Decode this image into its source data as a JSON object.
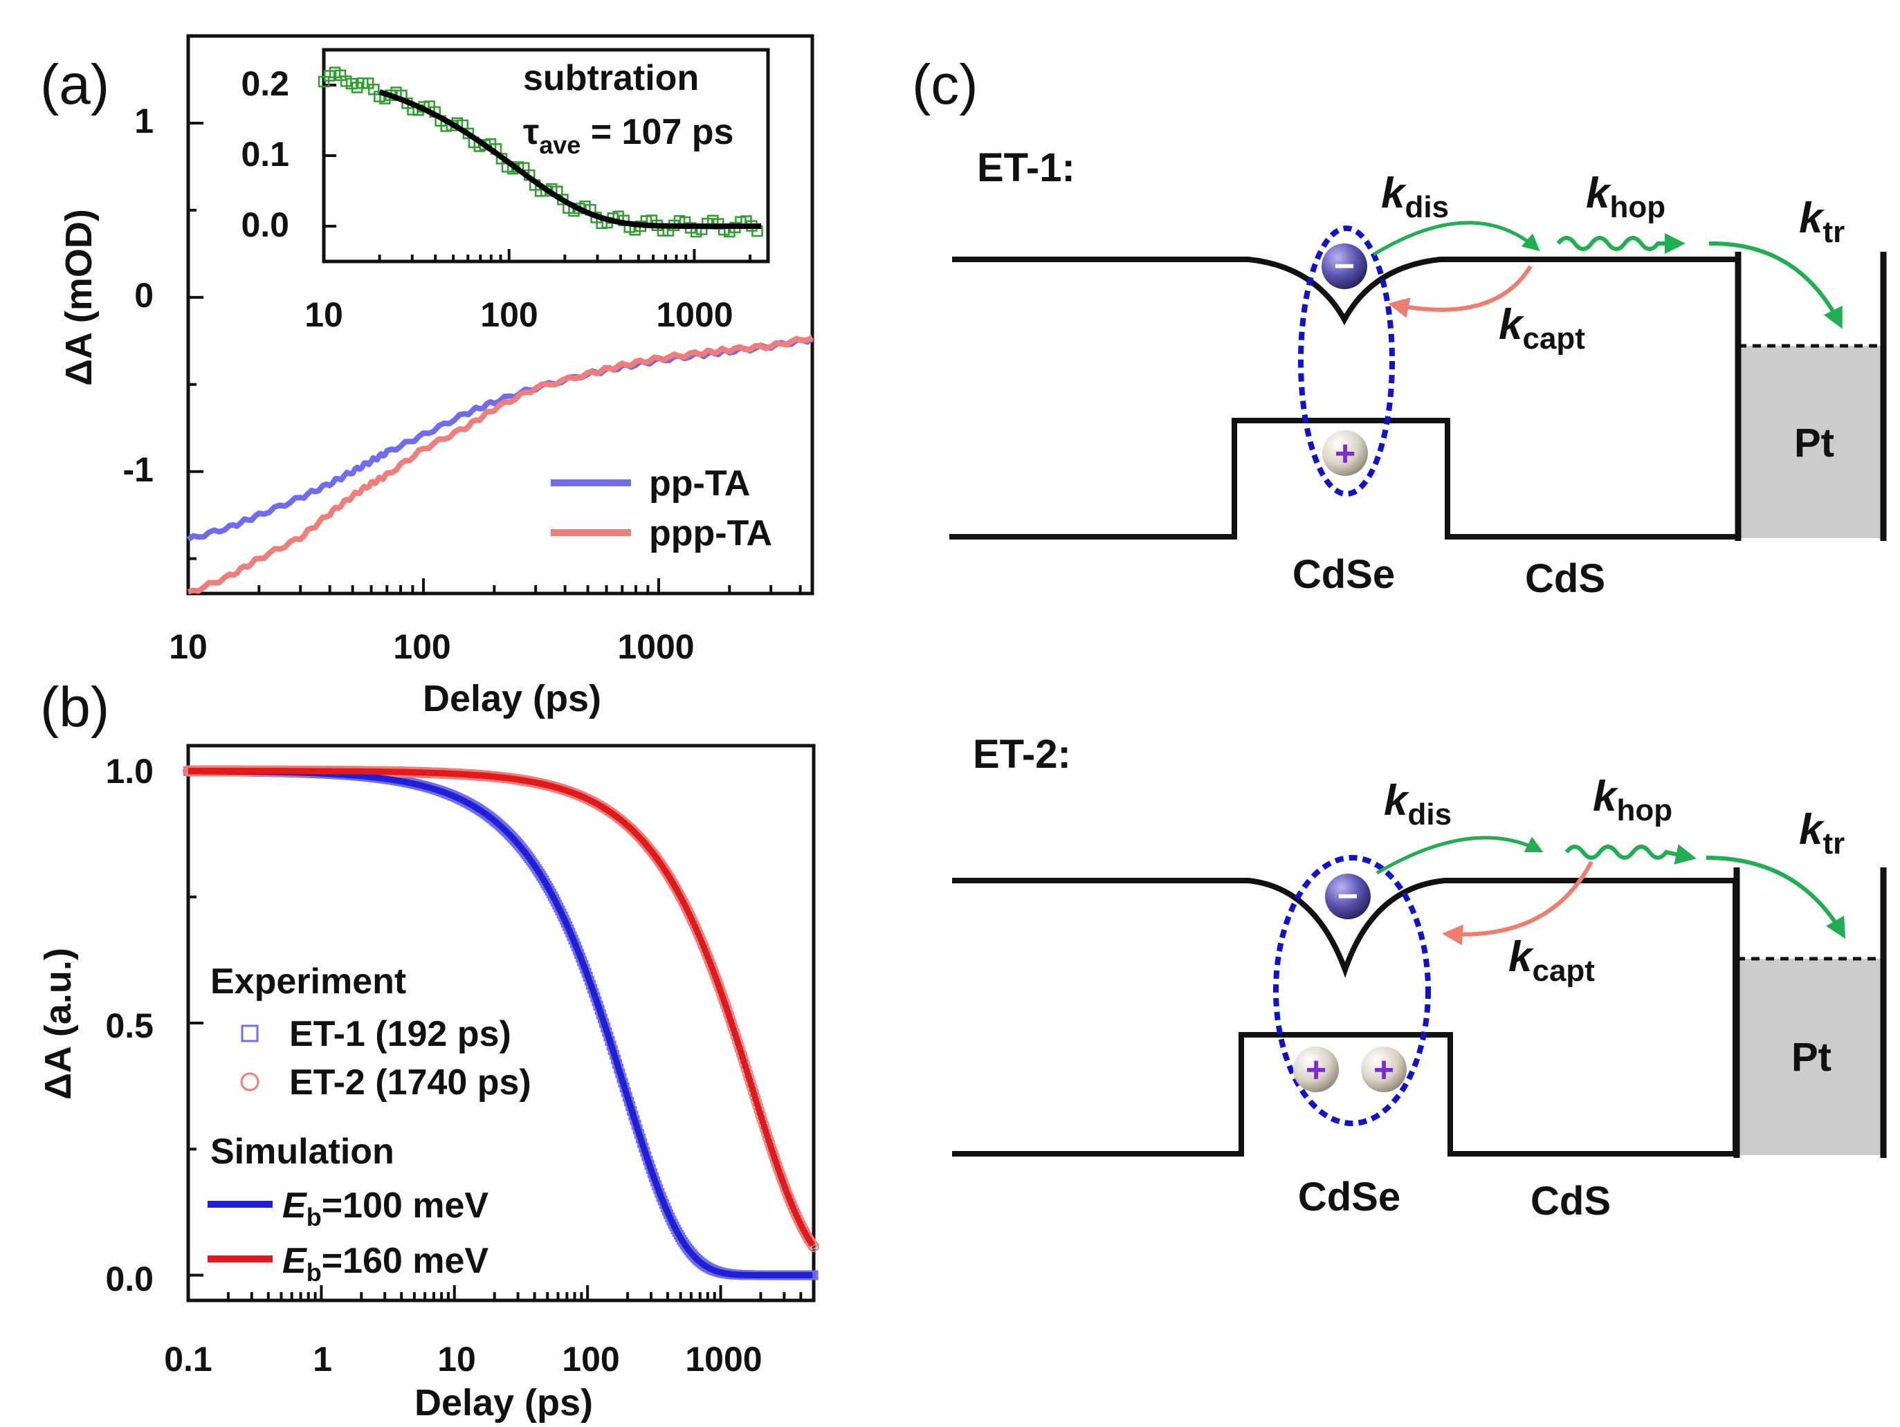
{
  "chart_data": [
    {
      "id": "a",
      "panel_label": "(a)",
      "type": "line",
      "xscale": "log",
      "xlim": [
        10,
        4500
      ],
      "ylim": [
        -1.7,
        1.5
      ],
      "xlabel": "Delay (ps)",
      "ylabel": "ΔA (mOD)",
      "xticks": [
        {
          "value": 10,
          "label": "10"
        },
        {
          "value": 100,
          "label": "100"
        },
        {
          "value": 1000,
          "label": "1000"
        }
      ],
      "yticks": [
        {
          "value": 1,
          "label": "1"
        },
        {
          "value": 0,
          "label": "0"
        },
        {
          "value": -1,
          "label": "-1"
        }
      ],
      "legend_position": "bottom-right",
      "series": [
        {
          "name": "pp-TA",
          "color": "#6f6cf0",
          "x": [
            10,
            15,
            20,
            30,
            40,
            50,
            60,
            70,
            100,
            150,
            200,
            300,
            500,
            700,
            1000,
            1500,
            2000,
            3000,
            4500
          ],
          "y": [
            -1.39,
            -1.32,
            -1.25,
            -1.15,
            -1.07,
            -1.0,
            -0.94,
            -0.89,
            -0.79,
            -0.67,
            -0.6,
            -0.52,
            -0.44,
            -0.4,
            -0.36,
            -0.33,
            -0.31,
            -0.28,
            -0.24
          ]
        },
        {
          "name": "ppp-TA",
          "color": "#f07d7a",
          "x": [
            10,
            15,
            20,
            30,
            40,
            50,
            60,
            70,
            100,
            150,
            200,
            300,
            500,
            700,
            1000,
            1500,
            2000,
            3000,
            4500
          ],
          "y": [
            -1.7,
            -1.6,
            -1.5,
            -1.38,
            -1.24,
            -1.14,
            -1.07,
            -1.02,
            -0.87,
            -0.75,
            -0.64,
            -0.52,
            -0.44,
            -0.39,
            -0.35,
            -0.32,
            -0.3,
            -0.28,
            -0.23
          ]
        }
      ],
      "inset": {
        "type": "scatter+line",
        "xscale": "log",
        "xlim": [
          10,
          2500
        ],
        "ylim": [
          -0.05,
          0.25
        ],
        "xticks": [
          {
            "value": 10,
            "label": "10"
          },
          {
            "value": 100,
            "label": "100"
          },
          {
            "value": 1000,
            "label": "1000"
          }
        ],
        "yticks": [
          {
            "value": 0.2,
            "label": "0.2"
          },
          {
            "value": 0.1,
            "label": "0.1"
          },
          {
            "value": 0.0,
            "label": "0.0"
          }
        ],
        "annotation_line1": "subtration",
        "annotation_tau": "τ",
        "annotation_tau_sub": "ave",
        "annotation_tau_value": " = 107 ps",
        "data_color": "#2e9e2e",
        "fit_color": "#000000",
        "tau_ps": 107,
        "amplitude": 0.205,
        "fit_start_ps": 20
      }
    },
    {
      "id": "b",
      "panel_label": "(b)",
      "type": "scatter+line",
      "xscale": "log",
      "xlim": [
        0.1,
        5000
      ],
      "ylim": [
        -0.05,
        1.05
      ],
      "xlabel": "Delay (ps)",
      "ylabel": "ΔA (a.u.)",
      "xticks": [
        {
          "value": 0.1,
          "label": "0.1"
        },
        {
          "value": 1,
          "label": "1"
        },
        {
          "value": 10,
          "label": "10"
        },
        {
          "value": 100,
          "label": "100"
        },
        {
          "value": 1000,
          "label": "1000"
        }
      ],
      "yticks": [
        {
          "value": 1.0,
          "label": "1.0"
        },
        {
          "value": 0.5,
          "label": "0.5"
        },
        {
          "value": 0.0,
          "label": "0.0"
        }
      ],
      "legend_position": "bottom-left",
      "legend_experiment_title": "Experiment",
      "legend_simulation_title": "Simulation",
      "series": [
        {
          "name": "ET-1 (192 ps)",
          "kind": "experiment",
          "marker": "square",
          "color": "#6f6cf0",
          "tau_ps": 192
        },
        {
          "name": "ET-2 (1740 ps)",
          "kind": "experiment",
          "marker": "circle",
          "color": "#f07d7a",
          "tau_ps": 1740
        },
        {
          "name": "E",
          "name_sub": "b",
          "name_rest": "=100 meV",
          "kind": "simulation",
          "color": "#1f1fd6",
          "tau_ps": 192
        },
        {
          "name": "E",
          "name_sub": "b",
          "name_rest": "=160 meV",
          "kind": "simulation",
          "color": "#e01a1a",
          "tau_ps": 1740
        }
      ]
    }
  ],
  "diagram": {
    "panel_label": "(c)",
    "et1": {
      "title": "ET-1:",
      "k_dis": "k",
      "k_dis_sub": "dis",
      "k_hop": "k",
      "k_hop_sub": "hop",
      "k_tr": "k",
      "k_tr_sub": "tr",
      "k_capt": "k",
      "k_capt_sub": "capt",
      "electron_symbol": "−",
      "hole_symbol": "+",
      "label_cdse": "CdSe",
      "label_cds": "CdS",
      "label_pt": "Pt"
    },
    "et2": {
      "title": "ET-2:",
      "k_dis": "k",
      "k_dis_sub": "dis",
      "k_hop": "k",
      "k_hop_sub": "hop",
      "k_tr": "k",
      "k_tr_sub": "tr",
      "k_capt": "k",
      "k_capt_sub": "capt",
      "electron_symbol": "−",
      "hole_symbol": "+",
      "label_cdse": "CdSe",
      "label_cds": "CdS",
      "label_pt": "Pt"
    },
    "colors": {
      "rate_arrow": "#1fae50",
      "capture_arrow": "#ee7d6d",
      "ellipse": "#1010d0",
      "pt_fill": "#cccccc"
    }
  }
}
